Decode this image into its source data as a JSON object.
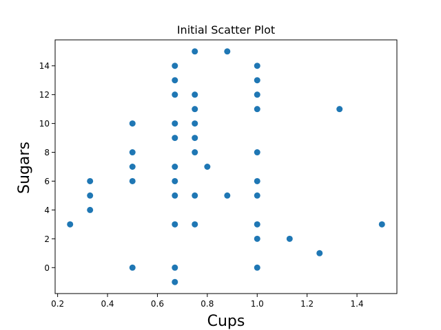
{
  "chart_data": {
    "type": "scatter",
    "title": "Initial Scatter Plot",
    "xlabel": "Cups",
    "ylabel": "Sugars",
    "xlim": [
      0.19,
      1.56
    ],
    "ylim": [
      -1.8,
      15.8
    ],
    "x_ticks": [
      0.2,
      0.4,
      0.6,
      0.8,
      1.0,
      1.2,
      1.4
    ],
    "x_tick_labels": [
      "0.2",
      "0.4",
      "0.6",
      "0.8",
      "1.0",
      "1.2",
      "1.4"
    ],
    "y_ticks": [
      0,
      2,
      4,
      6,
      8,
      10,
      12,
      14
    ],
    "y_tick_labels": [
      "0",
      "2",
      "4",
      "6",
      "8",
      "10",
      "12",
      "14"
    ],
    "grid": false,
    "marker_color": "#1f77b4",
    "points": [
      [
        0.25,
        3
      ],
      [
        0.33,
        6
      ],
      [
        0.33,
        5
      ],
      [
        0.33,
        4
      ],
      [
        0.5,
        10
      ],
      [
        0.5,
        8
      ],
      [
        0.5,
        7
      ],
      [
        0.5,
        6
      ],
      [
        0.5,
        0
      ],
      [
        0.67,
        14
      ],
      [
        0.67,
        13
      ],
      [
        0.67,
        12
      ],
      [
        0.67,
        10
      ],
      [
        0.67,
        9
      ],
      [
        0.67,
        7
      ],
      [
        0.67,
        6
      ],
      [
        0.67,
        5
      ],
      [
        0.67,
        3
      ],
      [
        0.67,
        0
      ],
      [
        0.67,
        -1
      ],
      [
        0.75,
        15
      ],
      [
        0.75,
        12
      ],
      [
        0.75,
        11
      ],
      [
        0.75,
        10
      ],
      [
        0.75,
        9
      ],
      [
        0.75,
        8
      ],
      [
        0.75,
        5
      ],
      [
        0.75,
        3
      ],
      [
        0.8,
        7
      ],
      [
        0.88,
        15
      ],
      [
        0.88,
        5
      ],
      [
        1.0,
        14
      ],
      [
        1.0,
        13
      ],
      [
        1.0,
        12
      ],
      [
        1.0,
        11
      ],
      [
        1.0,
        8
      ],
      [
        1.0,
        6
      ],
      [
        1.0,
        5
      ],
      [
        1.0,
        3
      ],
      [
        1.0,
        2
      ],
      [
        1.0,
        0
      ],
      [
        1.13,
        2
      ],
      [
        1.25,
        1
      ],
      [
        1.33,
        11
      ],
      [
        1.5,
        3
      ]
    ]
  }
}
